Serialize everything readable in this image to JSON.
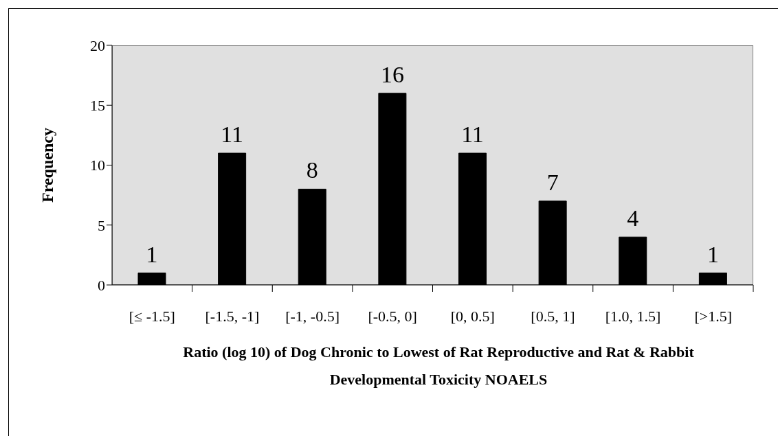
{
  "chart_data": {
    "type": "bar",
    "categories": [
      "[≤ -1.5]",
      "[-1.5, -1]",
      "[-1, -0.5]",
      "[-0.5, 0]",
      "[0, 0.5]",
      "[0.5, 1]",
      "[1.0, 1.5]",
      "[>1.5]"
    ],
    "values": [
      1,
      11,
      8,
      16,
      11,
      7,
      4,
      1
    ],
    "color": "#000000",
    "ylabel": "Frequency",
    "xlabel": "Ratio (log 10) of Dog Chronic to Lowest of Rat Reproductive and Rat & Rabbit Developmental Toxicity NOAELS",
    "ylim": [
      0,
      20
    ],
    "yticks": [
      0,
      5,
      10,
      15,
      20
    ],
    "data_labels": true,
    "grid": false,
    "legend": false
  }
}
